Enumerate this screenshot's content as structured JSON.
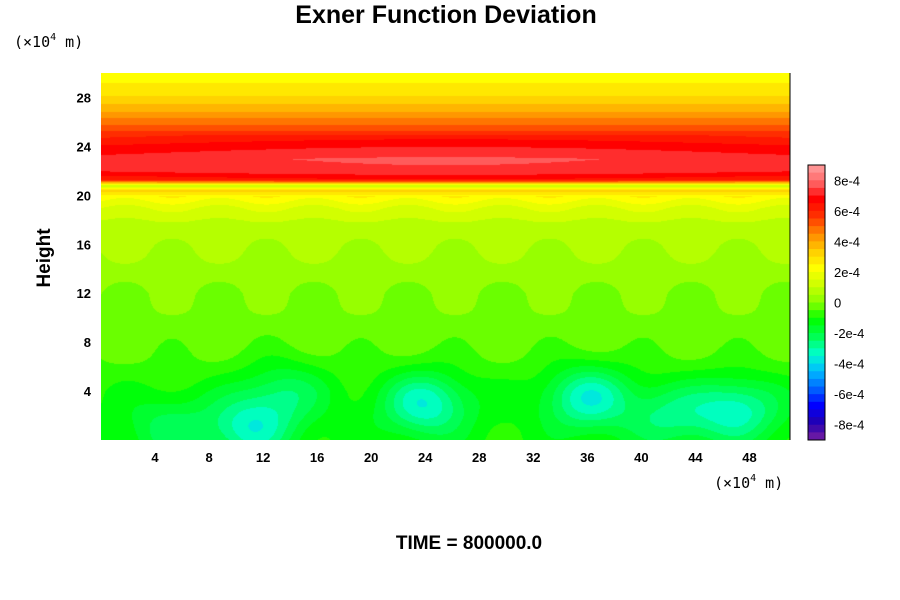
{
  "chart_data": {
    "type": "heatmap",
    "title": "Exner Function Deviation",
    "ylabel": "Height",
    "x_unit": {
      "prefix": "(×10",
      "exp": "4",
      "suffix": " m)"
    },
    "y_unit": {
      "prefix": "(×10",
      "exp": "4",
      "suffix": " m)"
    },
    "xlim": [
      0,
      51
    ],
    "ylim": [
      0,
      30
    ],
    "xticks": [
      4,
      8,
      12,
      16,
      20,
      24,
      28,
      32,
      36,
      40,
      44,
      48
    ],
    "yticks": [
      4,
      8,
      12,
      16,
      20,
      24,
      28
    ],
    "value_range": [
      -0.0009,
      0.0009
    ],
    "colorbar_ticks": [
      "8e-4",
      "6e-4",
      "4e-4",
      "2e-4",
      "0",
      "-2e-4",
      "-4e-4",
      "-6e-4",
      "-8e-4"
    ],
    "colorbar_values": [
      0.0008,
      0.0006,
      0.0004,
      0.0002,
      0,
      -0.0002,
      -0.0004,
      -0.0006,
      -0.0008
    ],
    "colormap": [
      "#7a1fa2",
      "#2200b0",
      "#0000ff",
      "#0066ff",
      "#00bbff",
      "#00ffcc",
      "#00ff55",
      "#00ff00",
      "#88ff00",
      "#ccff00",
      "#ffff00",
      "#ffcc00",
      "#ff8800",
      "#ff3300",
      "#ff0000",
      "#ff6666",
      "#ffa0a0"
    ],
    "vertical_profile": {
      "heights": [
        0,
        2,
        4,
        6,
        8,
        10,
        12,
        14,
        16,
        18,
        19,
        20,
        20.4,
        20.8,
        21.3,
        22,
        23,
        24,
        25,
        26,
        27,
        28,
        29,
        30
      ],
      "values": [
        -0.0001,
        -0.0001,
        -9e-05,
        -6e-05,
        -3e-05,
        -1e-05,
        0.0,
        3e-05,
        6e-05,
        0.0001,
        0.00015,
        0.00024,
        0.00032,
        0.0001,
        0.0006,
        0.0007,
        0.00072,
        0.00066,
        0.00058,
        0.00048,
        0.00039,
        0.00031,
        0.00026,
        0.00022
      ]
    },
    "bottom_anomalies": [
      {
        "x": 11,
        "y": 1,
        "value": -0.00022
      },
      {
        "x": 13.5,
        "y": 4,
        "value": -0.00014
      },
      {
        "x": 24,
        "y": 3,
        "value": -0.00025
      },
      {
        "x": 36,
        "y": 3.5,
        "value": -0.00025
      },
      {
        "x": 47,
        "y": 2.5,
        "value": -0.00023
      },
      {
        "x": 5,
        "y": 1,
        "value": -0.00012
      },
      {
        "x": 42,
        "y": 2,
        "value": -0.00015
      }
    ],
    "time_label": "TIME = 800000.0"
  }
}
